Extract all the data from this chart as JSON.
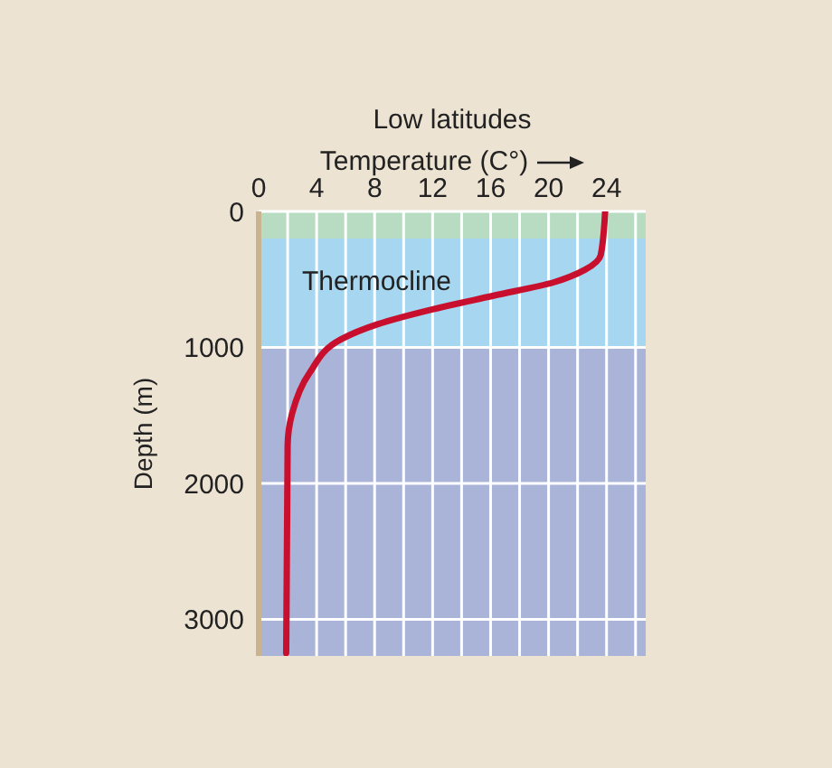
{
  "chart_data": {
    "type": "line",
    "title": "Low latitudes",
    "xlabel": "Temperature (C°)",
    "ylabel": "Depth (m)",
    "series": [
      {
        "color": "#c8102e",
        "x": [
          23.9,
          23.6,
          22.5,
          20.4,
          16.2,
          12,
          8.2,
          5.7,
          3.5,
          2.3,
          2.0,
          1.9
        ],
        "values": [
          0,
          320,
          430,
          520,
          620,
          720,
          830,
          940,
          1190,
          1490,
          1720,
          3250
        ]
      }
    ],
    "xlim": [
      0,
      26.7
    ],
    "xticks": [
      0,
      {
        "value": 2,
        "label": null
      },
      4,
      {
        "value": 6,
        "label": null
      },
      8,
      {
        "value": 10,
        "label": null
      },
      12,
      {
        "value": 14,
        "label": null
      },
      16,
      {
        "value": 18,
        "label": null
      },
      20,
      {
        "value": 22,
        "label": null
      },
      24,
      {
        "value": 26,
        "label": null
      }
    ],
    "ylim": [
      3270,
      0
    ],
    "yticks": [
      0,
      1000,
      2000,
      3000
    ],
    "bands": [
      {
        "axis": "y",
        "from": 0,
        "to": 200,
        "label": null,
        "color": "#b7dcc2"
      },
      {
        "axis": "y",
        "from": 200,
        "to": 1000,
        "label": "Thermocline",
        "color": "#a6d6f0"
      },
      {
        "axis": "y",
        "from": 1000,
        "to": 3270,
        "label": null,
        "color": "#a9b4d8"
      }
    ],
    "grid": true,
    "marker": "none",
    "line_style": "solid",
    "legend": false
  }
}
